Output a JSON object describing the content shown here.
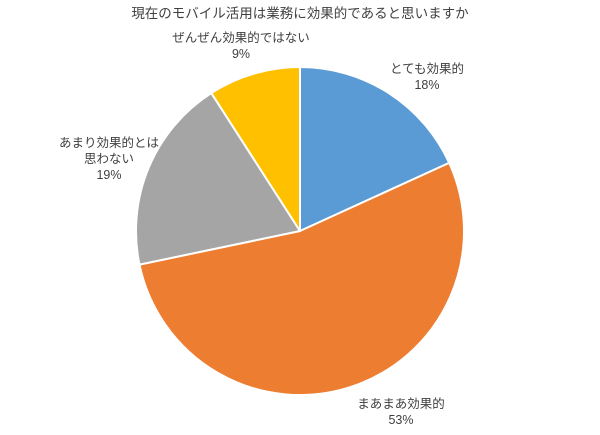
{
  "chart_data": {
    "type": "pie",
    "title": "現在のモバイル活用は業務に効果的であると思いますか",
    "categories": [
      "とても効果的",
      "まあまあ効果的",
      "あまり効果的とは思わない",
      "ぜんぜん効果的ではない"
    ],
    "values": [
      18,
      53,
      19,
      9
    ],
    "unit": "%",
    "colors": [
      "#5B9BD5",
      "#ED7D31",
      "#A5A5A5",
      "#FFC000"
    ],
    "slice_border_color": "#FFFFFF",
    "start_angle_deg": 0,
    "direction": "clockwise",
    "legend": "none",
    "label_style": "outside category name + percent",
    "text_color": "#404040"
  },
  "callouts": {
    "very_effective": {
      "lines": [
        "とても効果的",
        "18%"
      ]
    },
    "somewhat_effective": {
      "lines": [
        "まあまあ効果的",
        "53%"
      ]
    },
    "not_very_effective": {
      "lines": [
        "あまり効果的とは",
        "思わない",
        "19%"
      ]
    },
    "not_at_all_effective": {
      "lines": [
        "ぜんぜん効果的ではない",
        "9%"
      ]
    }
  }
}
